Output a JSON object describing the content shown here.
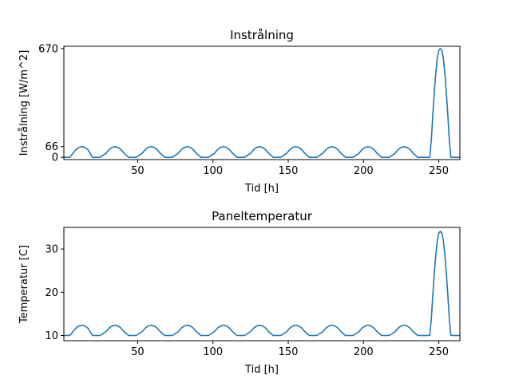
{
  "chart_data": [
    {
      "type": "line",
      "title": "Instrålning",
      "xlabel": "Tid [h]",
      "ylabel": "Instrålning [W/m^2]",
      "xlim": [
        1,
        264
      ],
      "ylim": [
        -14,
        684
      ],
      "x_ticks": [
        50,
        100,
        150,
        200,
        250
      ],
      "y_ticks": [
        0,
        66,
        670
      ],
      "color": "#1f77b4",
      "series": [
        {
          "x": [
            1,
            5,
            7,
            9,
            11,
            13,
            15,
            17,
            20,
            25,
            29,
            31,
            33,
            35,
            37,
            39,
            41,
            44,
            49,
            53,
            55,
            57,
            59,
            61,
            63,
            65,
            68,
            73,
            77,
            79,
            81,
            83,
            85,
            87,
            89,
            92,
            97,
            101,
            103,
            105,
            107,
            109,
            111,
            113,
            116,
            121,
            125,
            127,
            129,
            131,
            133,
            135,
            137,
            140,
            145,
            149,
            151,
            153,
            155,
            157,
            159,
            161,
            164,
            169,
            173,
            175,
            177,
            179,
            181,
            183,
            185,
            188,
            193,
            197,
            199,
            201,
            203,
            205,
            207,
            209,
            212,
            217,
            221,
            223,
            225,
            227,
            229,
            231,
            233,
            236,
            241,
            244,
            245,
            246,
            247,
            248,
            249,
            250,
            251,
            252,
            253,
            254,
            255,
            256,
            257,
            258,
            259,
            260,
            264
          ],
          "y": [
            0,
            0,
            25,
            47,
            61,
            66,
            61,
            47,
            0,
            0,
            25,
            47,
            61,
            66,
            61,
            47,
            25,
            0,
            0,
            25,
            47,
            61,
            66,
            61,
            47,
            25,
            0,
            0,
            25,
            47,
            61,
            66,
            61,
            47,
            25,
            0,
            0,
            25,
            47,
            61,
            66,
            61,
            47,
            25,
            0,
            0,
            25,
            47,
            61,
            66,
            61,
            47,
            25,
            0,
            0,
            25,
            47,
            61,
            66,
            61,
            47,
            25,
            0,
            0,
            25,
            47,
            61,
            66,
            61,
            47,
            25,
            0,
            0,
            25,
            47,
            61,
            66,
            61,
            47,
            25,
            0,
            0,
            25,
            47,
            61,
            66,
            61,
            47,
            25,
            0,
            0,
            0,
            104,
            258,
            400,
            520,
            612,
            660,
            670,
            660,
            612,
            520,
            400,
            258,
            104,
            0,
            0,
            0,
            0
          ]
        }
      ]
    },
    {
      "type": "line",
      "title": "Paneltemperatur",
      "xlabel": "Tid [h]",
      "ylabel": "Temperatur [C]",
      "xlim": [
        1,
        264
      ],
      "ylim": [
        8.8,
        35
      ],
      "x_ticks": [
        50,
        100,
        150,
        200,
        250
      ],
      "y_ticks": [
        10,
        20,
        30
      ],
      "color": "#1f77b4",
      "series": [
        {
          "x": [
            1,
            5,
            7,
            9,
            11,
            13,
            15,
            17,
            20,
            25,
            29,
            31,
            33,
            35,
            37,
            39,
            41,
            44,
            49,
            53,
            55,
            57,
            59,
            61,
            63,
            65,
            68,
            73,
            77,
            79,
            81,
            83,
            85,
            87,
            89,
            92,
            97,
            101,
            103,
            105,
            107,
            109,
            111,
            113,
            116,
            121,
            125,
            127,
            129,
            131,
            133,
            135,
            137,
            140,
            145,
            149,
            151,
            153,
            155,
            157,
            159,
            161,
            164,
            169,
            173,
            175,
            177,
            179,
            181,
            183,
            185,
            188,
            193,
            197,
            199,
            201,
            203,
            205,
            207,
            209,
            212,
            217,
            221,
            223,
            225,
            227,
            229,
            231,
            233,
            236,
            241,
            244,
            245,
            246,
            247,
            248,
            249,
            250,
            251,
            252,
            253,
            254,
            255,
            256,
            257,
            258,
            259,
            260,
            264
          ],
          "y": [
            10,
            10,
            10.9,
            11.7,
            12.2,
            12.4,
            12.2,
            11.7,
            10,
            10,
            10.9,
            11.7,
            12.2,
            12.4,
            12.2,
            11.7,
            10.9,
            10,
            10,
            10.9,
            11.7,
            12.2,
            12.4,
            12.2,
            11.7,
            10.9,
            10,
            10,
            10.9,
            11.7,
            12.2,
            12.4,
            12.2,
            11.7,
            10.9,
            10,
            10,
            10.9,
            11.7,
            12.2,
            12.4,
            12.2,
            11.7,
            10.9,
            10,
            10,
            10.9,
            11.7,
            12.2,
            12.4,
            12.2,
            11.7,
            10.9,
            10,
            10,
            10.9,
            11.7,
            12.2,
            12.4,
            12.2,
            11.7,
            10.9,
            10,
            10,
            10.9,
            11.7,
            12.2,
            12.4,
            12.2,
            11.7,
            10.9,
            10,
            10,
            10.9,
            11.7,
            12.2,
            12.4,
            12.2,
            11.7,
            10.9,
            10,
            10,
            10.9,
            11.7,
            12.2,
            12.4,
            12.2,
            11.7,
            10.9,
            10,
            10,
            10,
            13.7,
            19.3,
            24.4,
            28.7,
            32.0,
            33.7,
            34.1,
            33.7,
            32.0,
            28.7,
            24.4,
            19.3,
            13.7,
            10,
            10,
            10,
            10
          ]
        }
      ]
    }
  ]
}
